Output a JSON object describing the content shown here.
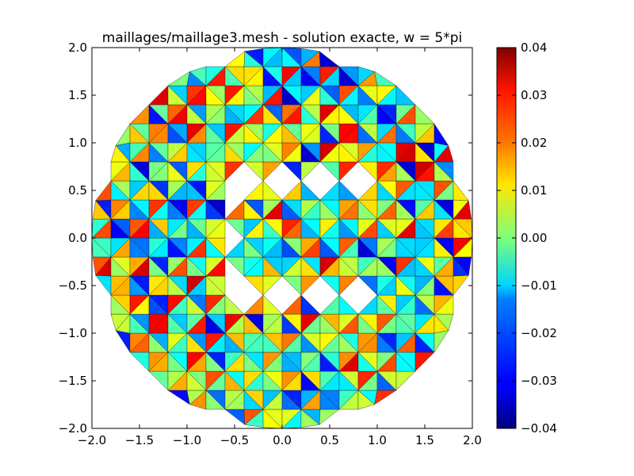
{
  "chart_data": {
    "type": "heatmap",
    "title": "maillages/maillage3.mesh - solution exacte, w = 5*pi",
    "xlabel": "",
    "ylabel": "",
    "xlim": [
      -2.0,
      2.0
    ],
    "ylim": [
      -2.0,
      2.0
    ],
    "x_ticks": [
      "−2.0",
      "−1.5",
      "−1.0",
      "−0.5",
      "0.0",
      "0.5",
      "1.0",
      "1.5",
      "2.0"
    ],
    "y_ticks": [
      "−2.0",
      "−1.5",
      "−1.0",
      "−0.5",
      "0.0",
      "0.5",
      "1.0",
      "1.5",
      "2.0"
    ],
    "x_tick_values": [
      -2.0,
      -1.5,
      -1.0,
      -0.5,
      0.0,
      0.5,
      1.0,
      1.5,
      2.0
    ],
    "y_tick_values": [
      -2.0,
      -1.5,
      -1.0,
      -0.5,
      0.0,
      0.5,
      1.0,
      1.5,
      2.0
    ],
    "colormap": "jet",
    "color_range": [
      -0.04,
      0.04
    ],
    "colorbar_ticks": [
      "0.04",
      "0.03",
      "0.02",
      "0.01",
      "0.00",
      "−0.01",
      "−0.02",
      "−0.03",
      "−0.04"
    ],
    "colorbar_tick_values": [
      0.04,
      0.03,
      0.02,
      0.01,
      0.0,
      -0.01,
      -0.02,
      -0.03,
      -0.04
    ],
    "domain": {
      "outer_circle_radius": 2.0,
      "hole_outer": {
        "x": [
          -0.65,
          1.05
        ],
        "y": [
          -0.7,
          0.7
        ]
      },
      "inner_block": {
        "x": [
          -0.5,
          1.05
        ],
        "y": [
          -0.5,
          0.5
        ]
      }
    },
    "grid": false,
    "legend": "colorbar-right"
  }
}
